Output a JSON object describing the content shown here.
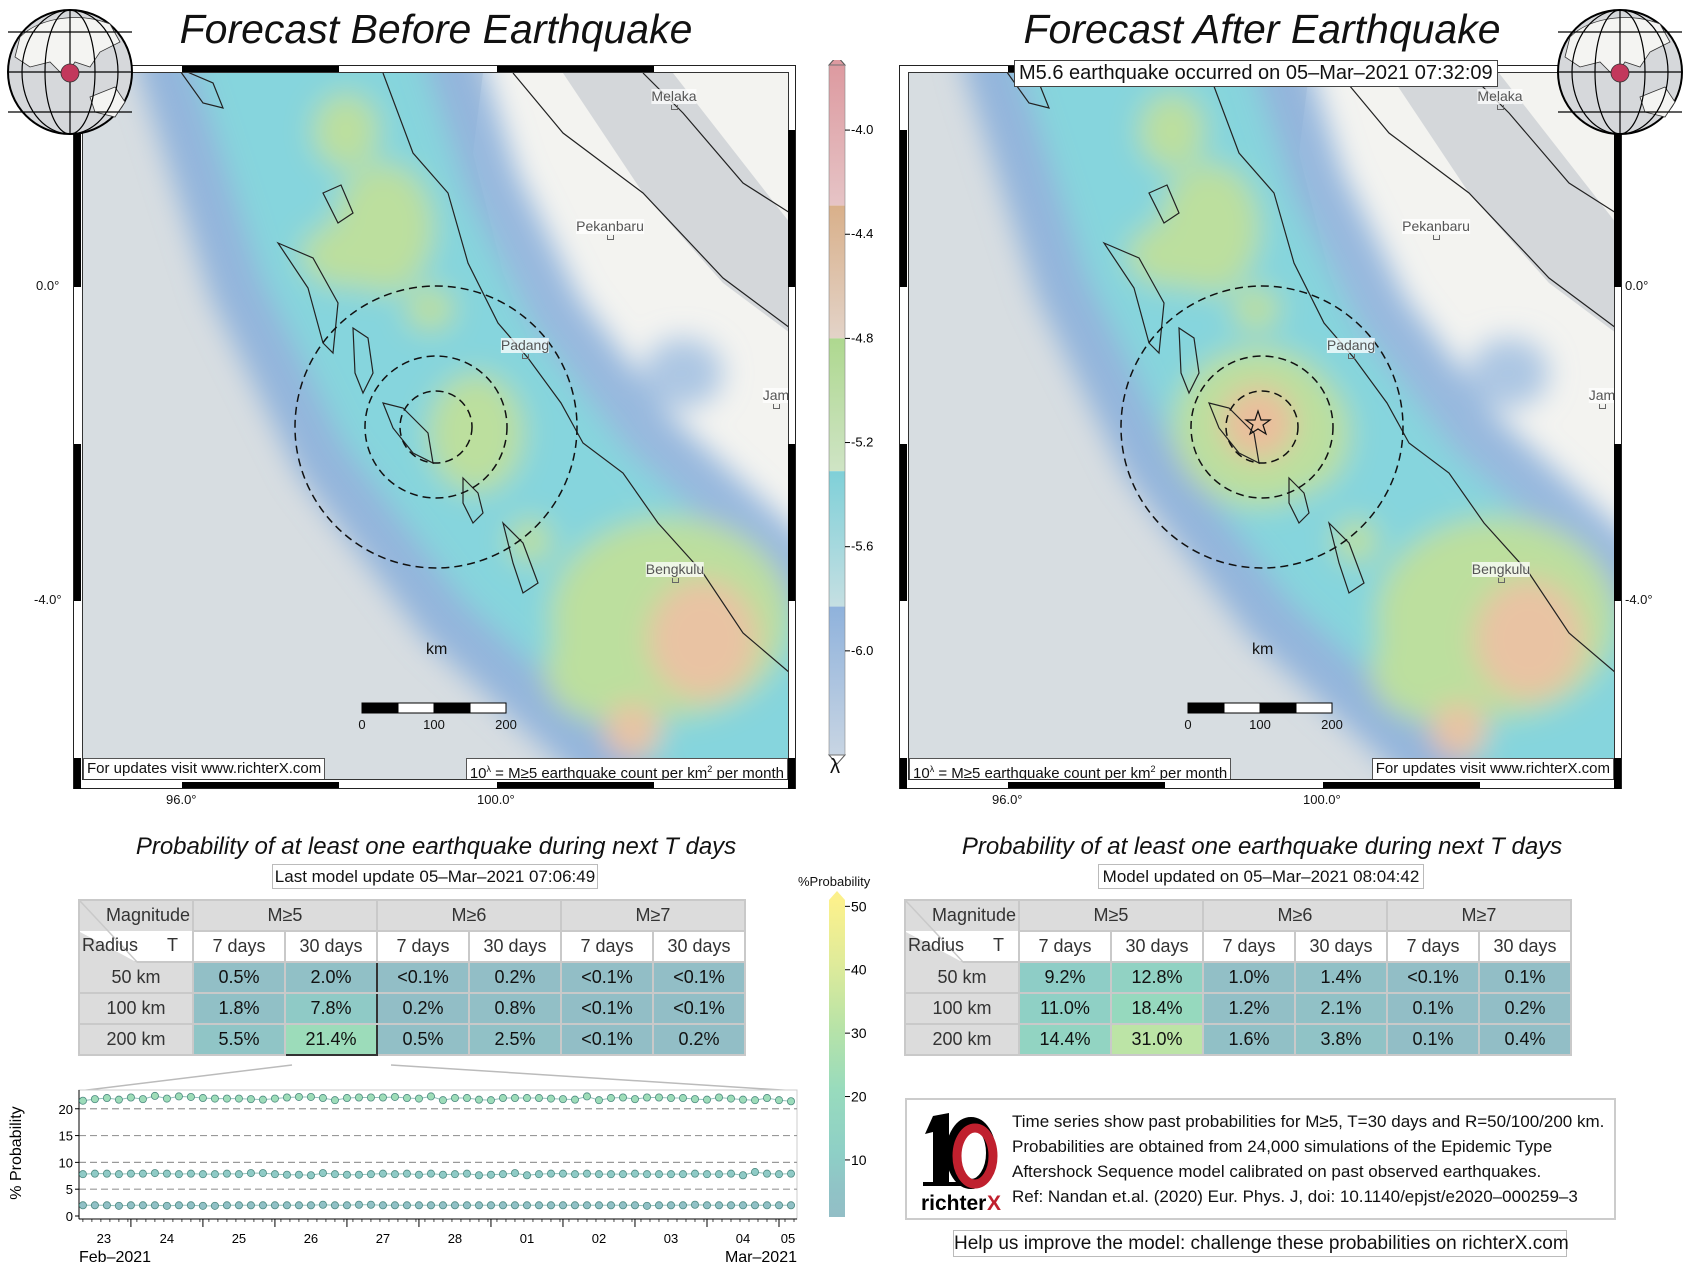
{
  "left_panel": {
    "title": "Forecast Before Earthquake",
    "updates_note": "For updates visit www.richterX.com",
    "unit_note_prefix": "10",
    "unit_note_sup": "λ",
    "unit_note_mid": " = M≥5 earthquake count per km",
    "unit_note_sup2": "2",
    "unit_note_suffix": " per month",
    "lat_labels": [
      "0.0°",
      "-4.0°"
    ],
    "lon_labels": [
      "96.0°",
      "100.0°"
    ],
    "cities": [
      "Melaka",
      "Pekanbaru",
      "Padang",
      "Jam",
      "Bengkulu"
    ],
    "scale": {
      "unit": "km",
      "labels": [
        "0",
        "100",
        "200"
      ]
    }
  },
  "right_panel": {
    "title": "Forecast After Earthquake",
    "event_label": "M5.6 earthquake occurred on 05–Mar–2021 07:32:09",
    "updates_note": "For updates visit www.richterX.com",
    "unit_note_prefix": "10",
    "unit_note_sup": "λ",
    "unit_note_mid": " = M≥5 earthquake count per km",
    "unit_note_sup2": "2",
    "unit_note_suffix": " per month",
    "lat_labels": [
      "0.0°",
      "-4.0°"
    ],
    "lon_labels": [
      "96.0°",
      "100.0°"
    ],
    "cities": [
      "Melaka",
      "Pekanbaru",
      "Padang",
      "Jam",
      "Bengkulu"
    ],
    "scale": {
      "unit": "km",
      "labels": [
        "0",
        "100",
        "200"
      ]
    }
  },
  "lambda_colorbar": {
    "symbol": "λ",
    "ticks": [
      "-4.0",
      "-4.4",
      "-4.8",
      "-5.2",
      "-5.6",
      "-6.0"
    ],
    "tick_values": [
      -4.0,
      -4.4,
      -4.8,
      -5.2,
      -5.6,
      -6.0
    ],
    "range": [
      -6.4,
      -3.75
    ]
  },
  "prob_colorbar": {
    "title": "%Probability",
    "ticks": [
      "50",
      "40",
      "30",
      "20",
      "10"
    ],
    "tick_values": [
      50,
      40,
      30,
      20,
      10
    ],
    "range": [
      1,
      51
    ]
  },
  "tables": {
    "title": "Probability of at least one earthquake during next T days",
    "left_update": "Last model update 05–Mar–2021 07:06:49",
    "right_update": "Model updated on 05–Mar–2021 08:04:42",
    "corner_top": "Magnitude",
    "corner_bottom_left": "Radius",
    "corner_bottom_right": "T",
    "magnitudes": [
      "M≥5",
      "M≥6",
      "M≥7"
    ],
    "periods": [
      "7 days",
      "30 days",
      "7 days",
      "30 days",
      "7 days",
      "30 days"
    ],
    "radii": [
      "50 km",
      "100 km",
      "200 km"
    ],
    "before": [
      [
        "0.5%",
        "2.0%",
        "<0.1%",
        "0.2%",
        "<0.1%",
        "<0.1%"
      ],
      [
        "1.8%",
        "7.8%",
        "0.2%",
        "0.8%",
        "<0.1%",
        "<0.1%"
      ],
      [
        "5.5%",
        "21.4%",
        "0.5%",
        "2.5%",
        "<0.1%",
        "0.2%"
      ]
    ],
    "after": [
      [
        "9.2%",
        "12.8%",
        "1.0%",
        "1.4%",
        "<0.1%",
        "0.1%"
      ],
      [
        "11.0%",
        "18.4%",
        "1.2%",
        "2.1%",
        "0.1%",
        "0.2%"
      ],
      [
        "14.4%",
        "31.0%",
        "1.6%",
        "3.8%",
        "0.1%",
        "0.4%"
      ]
    ]
  },
  "chart_data": {
    "type": "scatter",
    "title": "",
    "xlabel": "",
    "ylabel": "% Probability",
    "ylim": [
      0,
      23.5
    ],
    "yticks": [
      0,
      5,
      10,
      15,
      20
    ],
    "grid": "dashed horizontal",
    "x_unit": "hours since 23-Feb-2021 00:00",
    "xlim": [
      6.7,
      246
    ],
    "x_start": 8,
    "x_step": 4,
    "day_tick_hours": [
      24,
      48,
      72,
      96,
      120,
      144,
      168,
      192,
      216,
      240
    ],
    "day_labels": [
      "23",
      "24",
      "25",
      "26",
      "27",
      "28",
      "01",
      "02",
      "03",
      "04",
      "05"
    ],
    "day_label_hours": [
      15,
      36,
      60,
      84,
      108,
      132,
      156,
      180,
      204,
      228,
      243
    ],
    "month_labels": [
      "Feb–2021",
      "Mar–2021"
    ],
    "series": [
      {
        "name": "R=200 km",
        "values": [
          21.5,
          21.8,
          22.0,
          21.7,
          22.1,
          21.8,
          22.4,
          21.9,
          22.3,
          22.2,
          22.0,
          21.9,
          21.9,
          21.9,
          21.8,
          21.7,
          21.9,
          22.1,
          22.2,
          22.2,
          22.0,
          21.6,
          22.0,
          22.1,
          22.1,
          22.1,
          22.2,
          22.0,
          21.9,
          22.3,
          21.6,
          22.0,
          22.0,
          21.7,
          21.6,
          22.0,
          22.0,
          22.0,
          22.0,
          21.9,
          21.8,
          21.7,
          22.3,
          21.6,
          22.0,
          22.1,
          21.8,
          22.1,
          22.1,
          22.0,
          22.0,
          21.8,
          21.7,
          22.1,
          21.9,
          21.7,
          21.6,
          22.0,
          21.6,
          21.4
        ]
      },
      {
        "name": "R=100 km",
        "values": [
          7.8,
          7.9,
          7.9,
          7.8,
          7.9,
          7.9,
          8.0,
          7.9,
          7.8,
          7.9,
          7.8,
          7.8,
          7.9,
          7.8,
          8.0,
          8.0,
          7.8,
          7.7,
          7.7,
          7.6,
          8.0,
          7.8,
          7.7,
          7.7,
          7.8,
          7.9,
          7.8,
          7.9,
          7.7,
          7.9,
          7.7,
          7.8,
          7.9,
          7.6,
          7.7,
          7.8,
          8.0,
          7.6,
          7.8,
          7.9,
          7.9,
          7.8,
          7.9,
          7.8,
          7.8,
          7.8,
          7.9,
          7.8,
          7.8,
          7.8,
          7.8,
          7.9,
          7.8,
          7.8,
          7.9,
          7.6,
          8.2,
          7.9,
          7.8,
          7.9
        ]
      },
      {
        "name": "R=50 km",
        "values": [
          2.0,
          2.0,
          2.0,
          1.9,
          2.0,
          2.0,
          2.0,
          1.9,
          2.0,
          2.0,
          1.9,
          1.9,
          2.0,
          2.0,
          2.0,
          2.0,
          2.0,
          2.0,
          2.0,
          2.0,
          2.1,
          2.0,
          2.0,
          2.1,
          2.1,
          2.0,
          2.0,
          2.0,
          2.0,
          2.0,
          2.0,
          2.0,
          2.0,
          2.0,
          2.0,
          2.0,
          2.0,
          2.0,
          2.0,
          2.0,
          2.0,
          2.0,
          2.0,
          2.0,
          2.0,
          2.0,
          2.0,
          1.9,
          2.0,
          2.0,
          2.0,
          2.1,
          2.0,
          2.0,
          2.0,
          2.0,
          2.0,
          2.0,
          2.0,
          2.0
        ]
      }
    ]
  },
  "info": {
    "logo_text": "richterX",
    "lines": [
      "Time series show past probabilities for M≥5, T=30 days and R=50/100/200 km.",
      "Probabilities are obtained from 24,000 simulations of the Epidemic Type",
      "Aftershock Sequence model calibrated on past observed earthquakes.",
      "Ref: Nandan et.al. (2020) Eur. Phys. J, doi: 10.1140/epjst/e2020–000259–3"
    ],
    "help": "Help us improve the model: challenge these probabilities on richterX.com"
  },
  "colors": {
    "epicenter_dot": "#c2385c",
    "logo_red": "#c0202e"
  }
}
